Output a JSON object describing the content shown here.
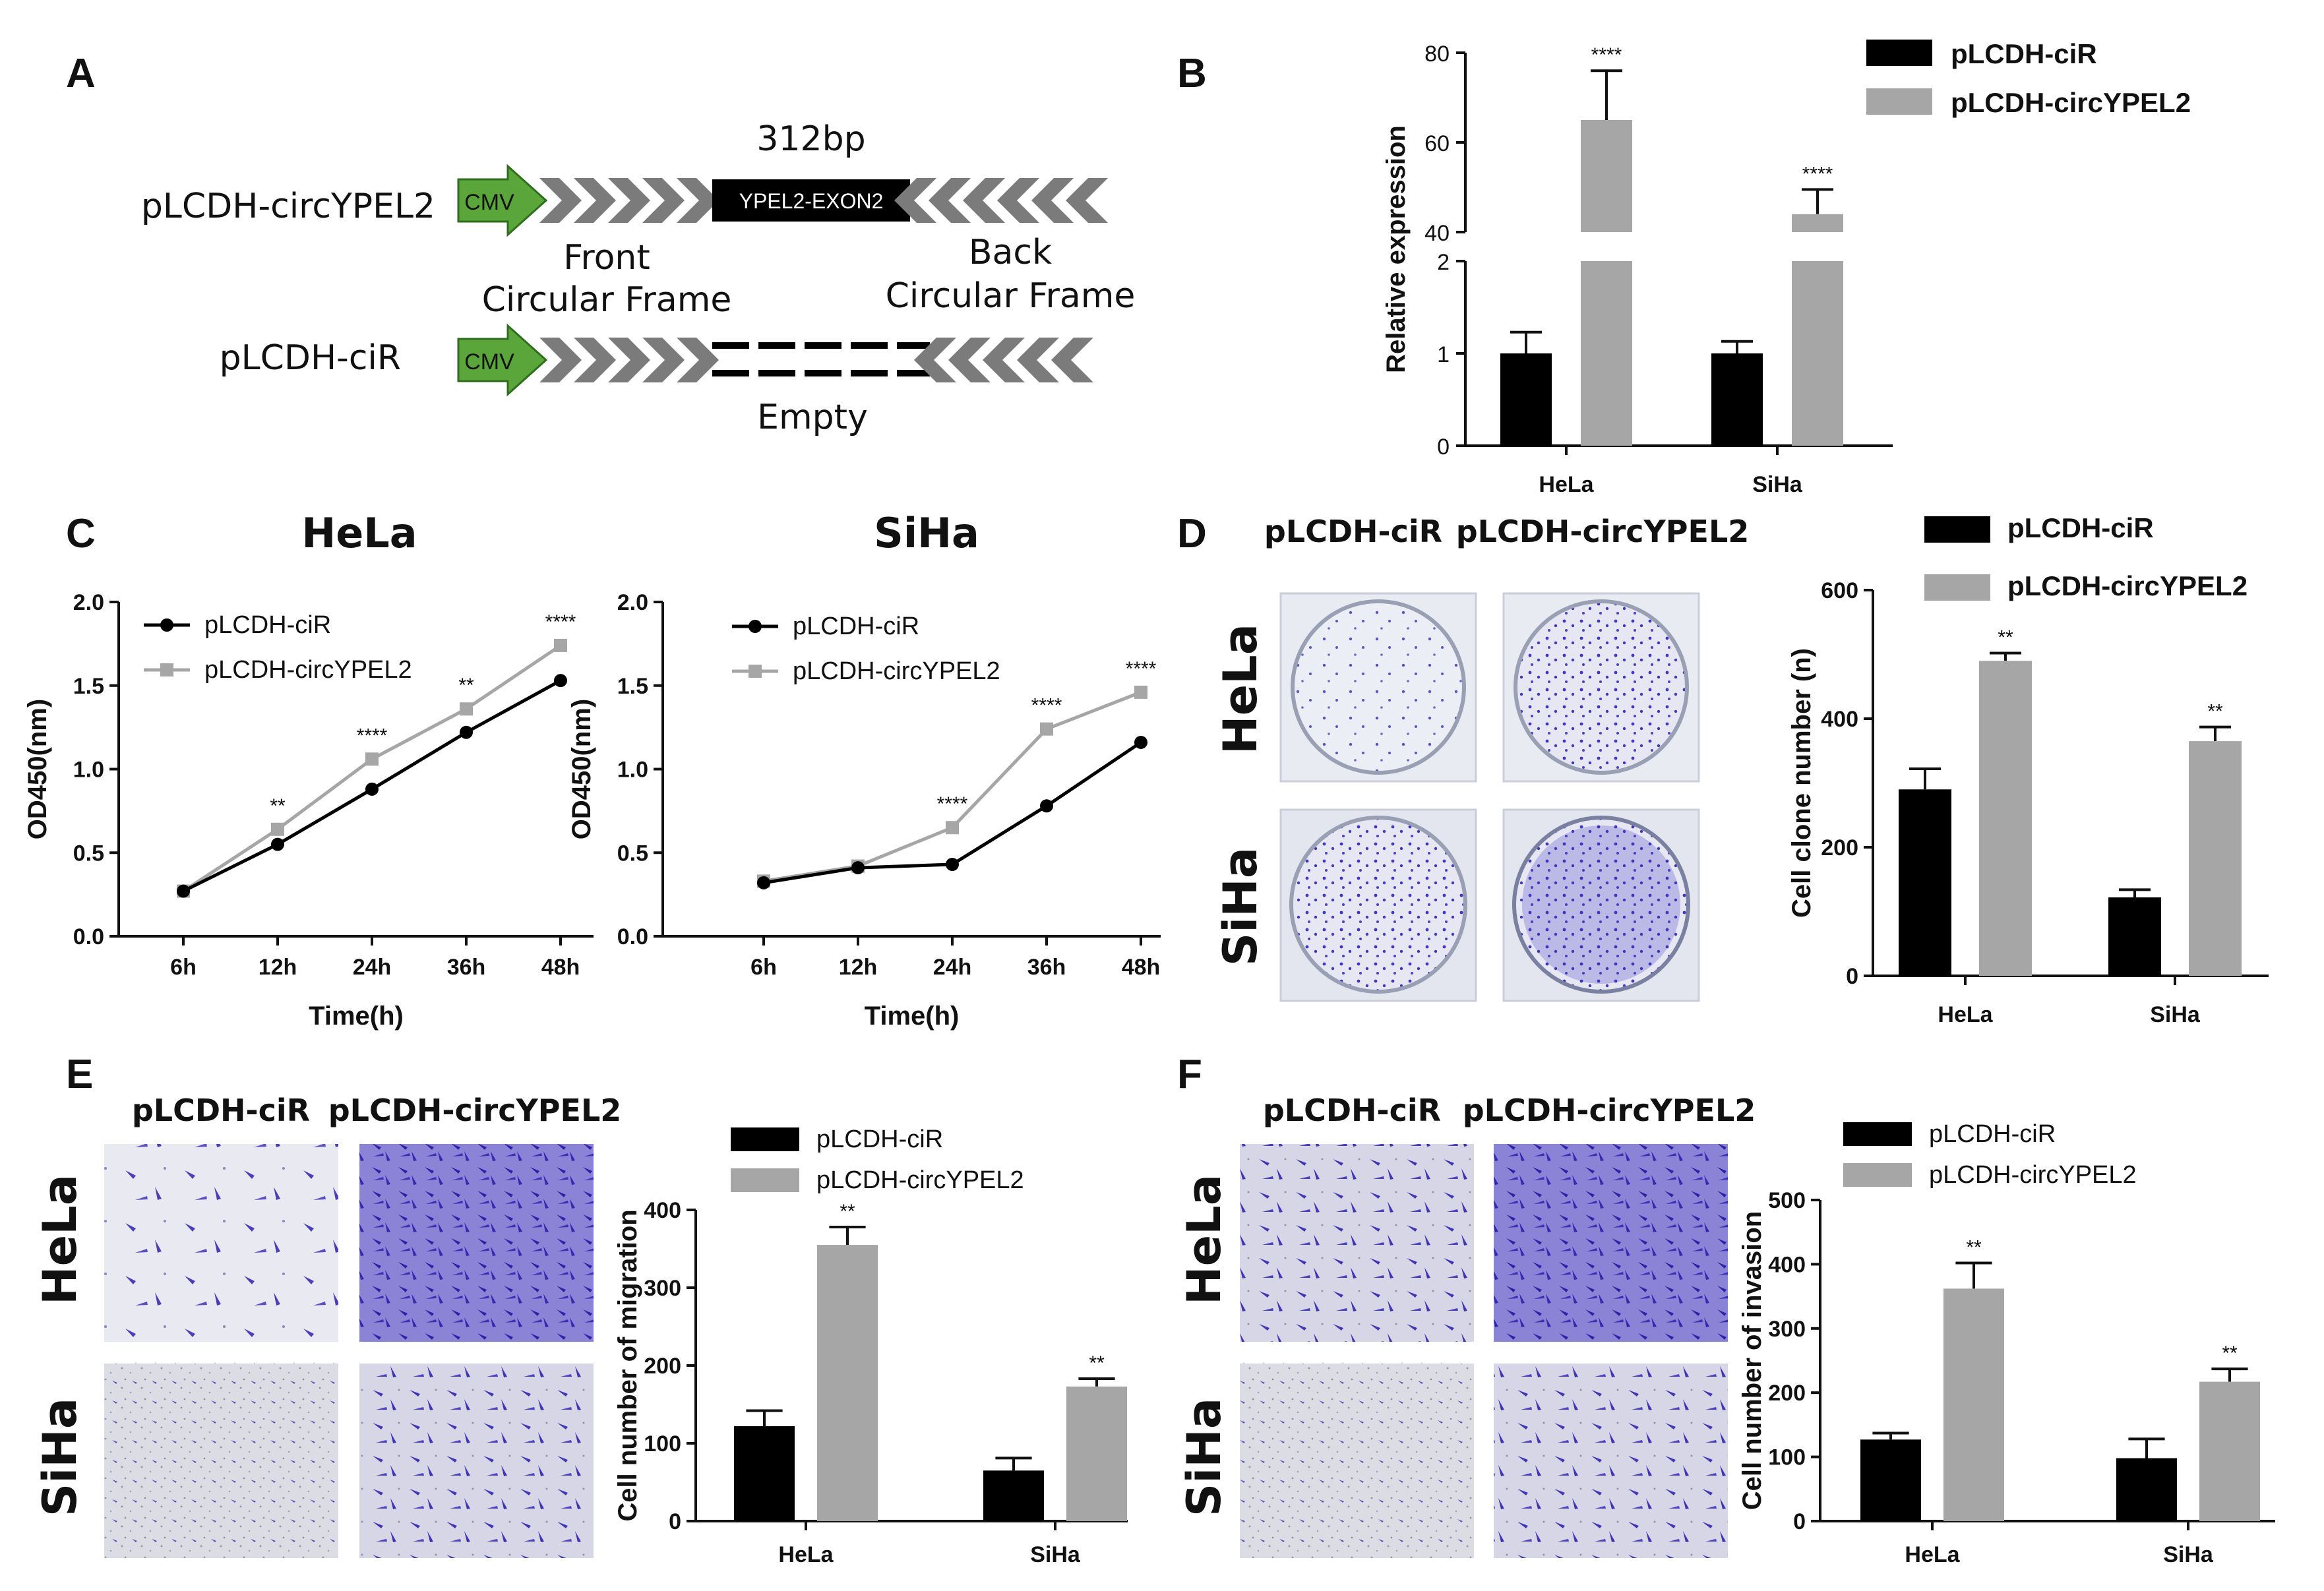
{
  "panel_labels": {
    "A": "A",
    "B": "B",
    "C": "C",
    "D": "D",
    "E": "E",
    "F": "F"
  },
  "colors": {
    "ctrl": "#000000",
    "circ": "#a6a6a6",
    "cmv": "#5aa63a",
    "chevron": "#7b7b7b",
    "stain": "#4b3fc4"
  },
  "panel_a": {
    "size_label": "312bp",
    "construct1": "pLCDH-circYPEL2",
    "construct2": "pLCDH-ciR",
    "promoter": "CMV",
    "insert": "YPEL2-EXON2",
    "front_frame": [
      "Front",
      "Circular Frame"
    ],
    "back_frame": [
      "Back",
      "Circular Frame"
    ],
    "empty": "Empty"
  },
  "panel_d": {
    "col1": "pLCDH-ciR",
    "col2": "pLCDH-circYPEL2",
    "row1": "HeLa",
    "row2": "SiHa"
  },
  "panel_e": {
    "col1": "pLCDH-ciR",
    "col2": "pLCDH-circYPEL2",
    "row1": "HeLa",
    "row2": "SiHa"
  },
  "panel_f": {
    "col1": "pLCDH-ciR",
    "col2": "pLCDH-circYPEL2",
    "row1": "HeLa",
    "row2": "SiHa"
  },
  "chart_data": [
    {
      "id": "B",
      "type": "bar",
      "ylabel": "Relative expression",
      "axis_break": [
        2,
        40
      ],
      "categories": [
        "HeLa",
        "SiHa"
      ],
      "series": [
        {
          "name": "pLCDH-ciR",
          "values": [
            1.0,
            1.0
          ],
          "errors": [
            0.23,
            0.13
          ]
        },
        {
          "name": "pLCDH-circYPEL2",
          "values": [
            65,
            44
          ],
          "errors": [
            11,
            5.5
          ]
        }
      ],
      "significance": [
        "****",
        "****"
      ],
      "lower_ticks": [
        "0",
        "1",
        "2"
      ],
      "upper_ticks": [
        "40",
        "60",
        "80"
      ]
    },
    {
      "id": "C1",
      "type": "line",
      "title": "HeLa",
      "xlabel": "Time(h)",
      "ylabel": "OD450(nm)",
      "ylim": [
        0,
        2
      ],
      "x": [
        "6h",
        "12h",
        "24h",
        "36h",
        "48h"
      ],
      "yticks": [
        "0.0",
        "0.5",
        "1.0",
        "1.5",
        "2.0"
      ],
      "series": [
        {
          "name": "pLCDH-ciR",
          "values": [
            0.27,
            0.55,
            0.88,
            1.22,
            1.53
          ]
        },
        {
          "name": "pLCDH-circYPEL2",
          "values": [
            0.27,
            0.64,
            1.06,
            1.36,
            1.74
          ]
        }
      ],
      "significance": [
        "",
        "**",
        "****",
        "**",
        "****"
      ]
    },
    {
      "id": "C2",
      "type": "line",
      "title": "SiHa",
      "xlabel": "Time(h)",
      "ylabel": "OD450(nm)",
      "ylim": [
        0,
        2
      ],
      "x": [
        "6h",
        "12h",
        "24h",
        "36h",
        "48h"
      ],
      "yticks": [
        "0.0",
        "0.5",
        "1.0",
        "1.5",
        "2.0"
      ],
      "series": [
        {
          "name": "pLCDH-ciR",
          "values": [
            0.32,
            0.41,
            0.43,
            0.78,
            1.16
          ]
        },
        {
          "name": "pLCDH-circYPEL2",
          "values": [
            0.33,
            0.42,
            0.65,
            1.24,
            1.46
          ]
        }
      ],
      "significance": [
        "",
        "",
        "****",
        "****",
        "****"
      ]
    },
    {
      "id": "D",
      "type": "bar",
      "ylabel": "Cell clone number (n)",
      "ylim": [
        0,
        600
      ],
      "yticks": [
        "0",
        "200",
        "400",
        "600"
      ],
      "categories": [
        "HeLa",
        "SiHa"
      ],
      "series": [
        {
          "name": "pLCDH-ciR",
          "values": [
            290,
            122
          ],
          "errors": [
            32,
            12
          ]
        },
        {
          "name": "pLCDH-circYPEL2",
          "values": [
            490,
            365
          ],
          "errors": [
            12,
            22
          ]
        }
      ],
      "significance": [
        "**",
        "**"
      ]
    },
    {
      "id": "E",
      "type": "bar",
      "ylabel": "Cell number of migration",
      "ylim": [
        0,
        400
      ],
      "yticks": [
        "0",
        "100",
        "200",
        "300",
        "400"
      ],
      "categories": [
        "HeLa",
        "SiHa"
      ],
      "series": [
        {
          "name": "pLCDH-ciR",
          "values": [
            122,
            65
          ],
          "errors": [
            20,
            16
          ]
        },
        {
          "name": "pLCDH-circYPEL2",
          "values": [
            355,
            173
          ],
          "errors": [
            23,
            10
          ]
        }
      ],
      "significance": [
        "**",
        "**"
      ]
    },
    {
      "id": "F",
      "type": "bar",
      "ylabel": "Cell number of invasion",
      "ylim": [
        0,
        500
      ],
      "yticks": [
        "0",
        "100",
        "200",
        "300",
        "400",
        "500"
      ],
      "categories": [
        "HeLa",
        "SiHa"
      ],
      "series": [
        {
          "name": "pLCDH-ciR",
          "values": [
            127,
            98
          ],
          "errors": [
            10,
            30
          ]
        },
        {
          "name": "pLCDH-circYPEL2",
          "values": [
            362,
            217
          ],
          "errors": [
            40,
            20
          ]
        }
      ],
      "significance": [
        "**",
        "**"
      ]
    }
  ]
}
